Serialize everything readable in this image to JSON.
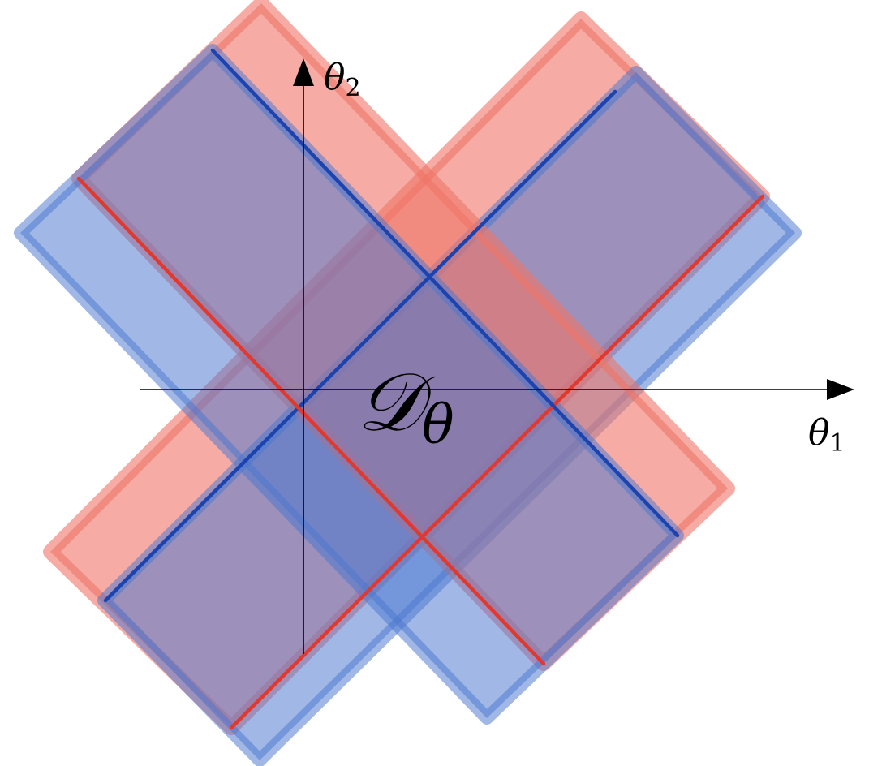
{
  "colors": {
    "red_fill": "#f07468",
    "blue_fill": "#4a76cf",
    "red_line": "#e2392f",
    "blue_line": "#1c44b0",
    "axis": "#000000"
  },
  "axes": {
    "x_label": "θ",
    "x_subscript": "1",
    "y_label": "θ",
    "y_subscript": "2"
  },
  "region_label": {
    "symbol": "𝒟",
    "subscript": "θ"
  }
}
